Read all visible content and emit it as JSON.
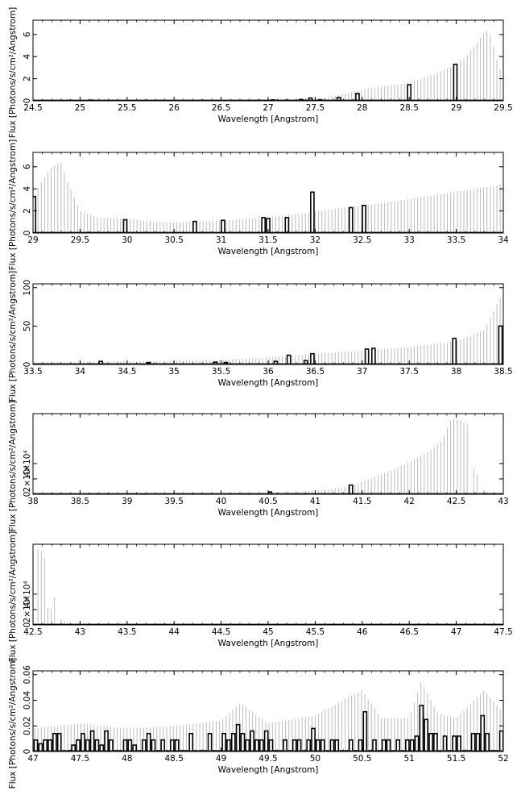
{
  "figure": {
    "background": "#ffffff",
    "spectrum_color": "#000000",
    "errorbar_color": "#b4b4b4"
  },
  "chart_data": [
    {
      "type": "bar",
      "xlabel": "Wavelength [Angstrom]",
      "ylabel": "Flux [Photons/s/cm²/Angstrom]",
      "xlim": [
        24.5,
        29.5
      ],
      "ylim": [
        0,
        7.3
      ],
      "xticks": [
        24.5,
        25,
        25.5,
        26,
        26.5,
        27,
        27.5,
        28,
        28.5,
        29,
        29.5
      ],
      "xtick_labels": [
        "24.5",
        "25",
        "25.5",
        "26",
        "26.5",
        "27",
        "27.5",
        "28",
        "28.5",
        "29",
        "29.5"
      ],
      "yticks": [
        0,
        2,
        4,
        6
      ],
      "ytick_labels": [
        "0",
        "2",
        "4",
        "6"
      ],
      "grid": false,
      "series": [
        {
          "values": [
            [
              24.88,
              0.04
            ],
            [
              25.12,
              0.06
            ],
            [
              25.7,
              0.05
            ],
            [
              26.3,
              0.04
            ],
            [
              26.9,
              0.05
            ],
            [
              27.05,
              0.08
            ],
            [
              27.2,
              0.06
            ],
            [
              27.35,
              0.12
            ],
            [
              27.45,
              0.25
            ],
            [
              27.55,
              0.1
            ],
            [
              27.75,
              0.3
            ],
            [
              27.95,
              0.65
            ],
            [
              28.5,
              1.45
            ],
            [
              28.99,
              3.3
            ]
          ]
        }
      ],
      "errorbar_envelope": [
        [
          27.6,
          0.3
        ],
        [
          27.8,
          0.6
        ],
        [
          28.0,
          1.0
        ],
        [
          28.2,
          1.3
        ],
        [
          28.4,
          1.5
        ],
        [
          28.6,
          1.9
        ],
        [
          28.8,
          2.5
        ],
        [
          28.95,
          3.1
        ],
        [
          29.1,
          4.0
        ],
        [
          29.2,
          5.0
        ],
        [
          29.3,
          6.2
        ],
        [
          29.35,
          6.4
        ],
        [
          29.4,
          4.8
        ],
        [
          29.45,
          3.0
        ],
        [
          29.5,
          2.5
        ]
      ]
    },
    {
      "type": "bar",
      "xlabel": "Wavelength [Angstrom]",
      "ylabel": "Flux [Photons/s/cm²/Angstrom]",
      "xlim": [
        29,
        34
      ],
      "ylim": [
        0,
        7.3
      ],
      "xticks": [
        29,
        29.5,
        30,
        30.5,
        31,
        31.5,
        32,
        32.5,
        33,
        33.5,
        34
      ],
      "xtick_labels": [
        "29",
        "29.5",
        "30",
        "30.5",
        "31",
        "31.5",
        "32",
        "32.5",
        "33",
        "33.5",
        "34"
      ],
      "yticks": [
        0,
        2,
        4,
        6
      ],
      "ytick_labels": [
        "0",
        "2",
        "4",
        "6"
      ],
      "grid": false,
      "series": [
        {
          "values": [
            [
              29.01,
              3.3
            ],
            [
              29.98,
              1.2
            ],
            [
              30.72,
              1.05
            ],
            [
              31.02,
              1.15
            ],
            [
              31.45,
              1.4
            ],
            [
              31.5,
              1.3
            ],
            [
              31.7,
              1.4
            ],
            [
              31.97,
              3.7
            ],
            [
              32.38,
              2.3
            ],
            [
              32.52,
              2.5
            ]
          ]
        }
      ],
      "errorbar_envelope": [
        [
          29.0,
          3.3
        ],
        [
          29.1,
          4.8
        ],
        [
          29.2,
          6.0
        ],
        [
          29.3,
          6.4
        ],
        [
          29.35,
          5.0
        ],
        [
          29.5,
          2.0
        ],
        [
          29.7,
          1.4
        ],
        [
          30.0,
          1.3
        ],
        [
          30.3,
          1.0
        ],
        [
          30.5,
          0.95
        ],
        [
          30.8,
          1.05
        ],
        [
          31.0,
          1.1
        ],
        [
          31.3,
          1.3
        ],
        [
          31.6,
          1.5
        ],
        [
          31.9,
          1.8
        ],
        [
          32.2,
          2.2
        ],
        [
          32.5,
          2.5
        ],
        [
          32.8,
          2.8
        ],
        [
          33.1,
          3.2
        ],
        [
          33.4,
          3.6
        ],
        [
          33.7,
          4.0
        ],
        [
          34.0,
          4.4
        ]
      ]
    },
    {
      "type": "bar",
      "xlabel": "Wavelength [Angstrom]",
      "ylabel": "Flux [Photons/s/cm²/Angstrom]",
      "xlim": [
        33.5,
        38.5
      ],
      "ylim": [
        0,
        105
      ],
      "xticks": [
        33.5,
        34,
        34.5,
        35,
        35.5,
        36,
        36.5,
        37,
        37.5,
        38,
        38.5
      ],
      "xtick_labels": [
        "33.5",
        "34",
        "34.5",
        "35",
        "35.5",
        "36",
        "36.5",
        "37",
        "37.5",
        "38",
        "38.5"
      ],
      "yticks": [
        0,
        50,
        100
      ],
      "ytick_labels": [
        "0",
        "50",
        "100"
      ],
      "grid": false,
      "series": [
        {
          "values": [
            [
              34.22,
              4.0
            ],
            [
              34.73,
              2.5
            ],
            [
              35.44,
              3.0
            ],
            [
              35.55,
              2.5
            ],
            [
              36.08,
              4.0
            ],
            [
              36.22,
              12
            ],
            [
              36.4,
              5.0
            ],
            [
              36.47,
              14
            ],
            [
              37.05,
              20
            ],
            [
              37.12,
              21
            ],
            [
              37.98,
              34
            ],
            [
              38.47,
              50
            ]
          ]
        }
      ],
      "errorbar_envelope": [
        [
          33.5,
          3
        ],
        [
          34.5,
          4
        ],
        [
          35.0,
          5
        ],
        [
          35.5,
          6
        ],
        [
          36.0,
          9
        ],
        [
          36.5,
          14
        ],
        [
          37.0,
          18
        ],
        [
          37.5,
          23
        ],
        [
          38.0,
          30
        ],
        [
          38.3,
          45
        ],
        [
          38.5,
          95
        ]
      ]
    },
    {
      "type": "bar",
      "xlabel": "Wavelength [Angstrom]",
      "ylabel": "Flux [Photons/s/cm²/Angstrom]",
      "xlim": [
        38,
        43
      ],
      "ylim": [
        0,
        105000
      ],
      "xticks": [
        38,
        38.5,
        39,
        39.5,
        40,
        40.5,
        41,
        41.5,
        42,
        42.5,
        43
      ],
      "xtick_labels": [
        "38",
        "38.5",
        "39",
        "39.5",
        "40",
        "40.5",
        "41",
        "41.5",
        "42",
        "42.5",
        "43"
      ],
      "yticks": [
        0,
        20000,
        40000
      ],
      "ytick_labels": [
        "0",
        "2×10⁴",
        "4×10⁴"
      ],
      "grid": false,
      "series": [
        {
          "values": [
            [
              40.52,
              3000
            ],
            [
              41.38,
              12000
            ]
          ]
        }
      ],
      "errorbar_envelope": [
        [
          40.3,
          1500
        ],
        [
          40.8,
          3000
        ],
        [
          41.0,
          5000
        ],
        [
          41.3,
          9000
        ],
        [
          41.5,
          17000
        ],
        [
          41.8,
          30000
        ],
        [
          42.0,
          42000
        ],
        [
          42.2,
          55000
        ],
        [
          42.35,
          70000
        ],
        [
          42.45,
          99000
        ],
        [
          42.55,
          97000
        ],
        [
          42.62,
          90000
        ],
        [
          42.65,
          0
        ],
        [
          42.7,
          45000
        ],
        [
          42.75,
          0
        ],
        [
          42.8,
          8000
        ],
        [
          42.85,
          0
        ]
      ]
    },
    {
      "type": "bar",
      "xlabel": "Wavelength [Angstrom]",
      "ylabel": "Flux [Photons/s/cm²/Angstrom]",
      "xlim": [
        42.5,
        47.5
      ],
      "ylim": [
        0,
        105000
      ],
      "xticks": [
        42.5,
        43,
        43.5,
        44,
        44.5,
        45,
        45.5,
        46,
        46.5,
        47,
        47.5
      ],
      "xtick_labels": [
        "42.5",
        "43",
        "43.5",
        "44",
        "44.5",
        "45",
        "45.5",
        "46",
        "46.5",
        "47",
        "47.5"
      ],
      "yticks": [
        0,
        20000,
        40000
      ],
      "ytick_labels": [
        "0",
        "2×10⁴",
        "4×10⁴"
      ],
      "grid": false,
      "series": [
        {
          "values": []
        }
      ],
      "errorbar_envelope": [
        [
          42.52,
          99000
        ],
        [
          42.57,
          97000
        ],
        [
          42.62,
          93000
        ],
        [
          42.67,
          0
        ],
        [
          42.72,
          45000
        ],
        [
          42.76,
          0
        ],
        [
          42.8,
          8000
        ],
        [
          42.85,
          3000
        ],
        [
          42.9,
          0
        ]
      ]
    },
    {
      "type": "bar",
      "xlabel": "Wavelength [Angstrom]",
      "ylabel": "Flux [Photons/s/cm²/Angstrom]",
      "xlim": [
        47,
        52
      ],
      "ylim": [
        0,
        0.063
      ],
      "xticks": [
        47,
        47.5,
        48,
        48.5,
        49,
        49.5,
        50,
        50.5,
        51,
        51.5,
        52
      ],
      "xtick_labels": [
        "47",
        "47.5",
        "48",
        "48.5",
        "49",
        "49.5",
        "50",
        "50.5",
        "51",
        "51.5",
        "52"
      ],
      "yticks": [
        0,
        0.02,
        0.04,
        0.06
      ],
      "ytick_labels": [
        "0",
        "0.02",
        "0.04",
        "0.06"
      ],
      "grid": false,
      "series": [
        {
          "values": [
            [
              47.03,
              0.009
            ],
            [
              47.08,
              0.006
            ],
            [
              47.13,
              0.009
            ],
            [
              47.18,
              0.009
            ],
            [
              47.23,
              0.014
            ],
            [
              47.28,
              0.014
            ],
            [
              47.33,
              0.0
            ],
            [
              47.38,
              0.0
            ],
            [
              47.43,
              0.005
            ],
            [
              47.48,
              0.009
            ],
            [
              47.53,
              0.014
            ],
            [
              47.58,
              0.009
            ],
            [
              47.63,
              0.016
            ],
            [
              47.68,
              0.009
            ],
            [
              47.73,
              0.005
            ],
            [
              47.78,
              0.016
            ],
            [
              47.83,
              0.009
            ],
            [
              47.88,
              0.0
            ],
            [
              47.93,
              0.0
            ],
            [
              47.98,
              0.009
            ],
            [
              48.03,
              0.009
            ],
            [
              48.08,
              0.005
            ],
            [
              48.13,
              0.0
            ],
            [
              48.18,
              0.009
            ],
            [
              48.23,
              0.014
            ],
            [
              48.28,
              0.009
            ],
            [
              48.33,
              0.0
            ],
            [
              48.38,
              0.009
            ],
            [
              48.43,
              0.0
            ],
            [
              48.48,
              0.009
            ],
            [
              48.53,
              0.009
            ],
            [
              48.58,
              0.0
            ],
            [
              48.63,
              0.0
            ],
            [
              48.68,
              0.014
            ],
            [
              48.73,
              0.0
            ],
            [
              48.78,
              0.0
            ],
            [
              48.83,
              0.0
            ],
            [
              48.88,
              0.014
            ],
            [
              48.93,
              0.0
            ],
            [
              48.98,
              0.0
            ],
            [
              49.03,
              0.014
            ],
            [
              49.08,
              0.009
            ],
            [
              49.13,
              0.014
            ],
            [
              49.18,
              0.021
            ],
            [
              49.23,
              0.014
            ],
            [
              49.28,
              0.009
            ],
            [
              49.33,
              0.016
            ],
            [
              49.38,
              0.009
            ],
            [
              49.43,
              0.009
            ],
            [
              49.48,
              0.016
            ],
            [
              49.53,
              0.009
            ],
            [
              49.58,
              0.0
            ],
            [
              49.63,
              0.0
            ],
            [
              49.68,
              0.009
            ],
            [
              49.73,
              0.0
            ],
            [
              49.78,
              0.009
            ],
            [
              49.83,
              0.009
            ],
            [
              49.88,
              0.0
            ],
            [
              49.93,
              0.009
            ],
            [
              49.98,
              0.018
            ],
            [
              50.03,
              0.009
            ],
            [
              50.08,
              0.009
            ],
            [
              50.13,
              0.0
            ],
            [
              50.18,
              0.009
            ],
            [
              50.23,
              0.009
            ],
            [
              50.28,
              0.0
            ],
            [
              50.33,
              0.0
            ],
            [
              50.38,
              0.009
            ],
            [
              50.43,
              0.0
            ],
            [
              50.48,
              0.009
            ],
            [
              50.53,
              0.031
            ],
            [
              50.58,
              0.0
            ],
            [
              50.63,
              0.009
            ],
            [
              50.68,
              0.0
            ],
            [
              50.73,
              0.009
            ],
            [
              50.78,
              0.009
            ],
            [
              50.83,
              0.0
            ],
            [
              50.88,
              0.009
            ],
            [
              50.93,
              0.0
            ],
            [
              50.98,
              0.009
            ],
            [
              51.03,
              0.009
            ],
            [
              51.08,
              0.012
            ],
            [
              51.13,
              0.036
            ],
            [
              51.18,
              0.025
            ],
            [
              51.23,
              0.014
            ],
            [
              51.28,
              0.014
            ],
            [
              51.33,
              0.0
            ],
            [
              51.38,
              0.012
            ],
            [
              51.43,
              0.0
            ],
            [
              51.48,
              0.012
            ],
            [
              51.53,
              0.012
            ],
            [
              51.58,
              0.0
            ],
            [
              51.63,
              0.0
            ],
            [
              51.68,
              0.014
            ],
            [
              51.73,
              0.014
            ],
            [
              51.78,
              0.028
            ],
            [
              51.83,
              0.014
            ],
            [
              51.88,
              0.0
            ],
            [
              51.93,
              0.0
            ],
            [
              51.98,
              0.016
            ]
          ]
        }
      ],
      "errorbar_envelope": [
        [
          47.0,
          0.018
        ],
        [
          47.5,
          0.022
        ],
        [
          48.0,
          0.018
        ],
        [
          48.5,
          0.02
        ],
        [
          49.0,
          0.024
        ],
        [
          49.2,
          0.038
        ],
        [
          49.5,
          0.022
        ],
        [
          50.0,
          0.028
        ],
        [
          50.5,
          0.048
        ],
        [
          50.7,
          0.026
        ],
        [
          51.0,
          0.026
        ],
        [
          51.13,
          0.055
        ],
        [
          51.3,
          0.03
        ],
        [
          51.5,
          0.026
        ],
        [
          51.8,
          0.048
        ],
        [
          52.0,
          0.03
        ]
      ]
    }
  ]
}
